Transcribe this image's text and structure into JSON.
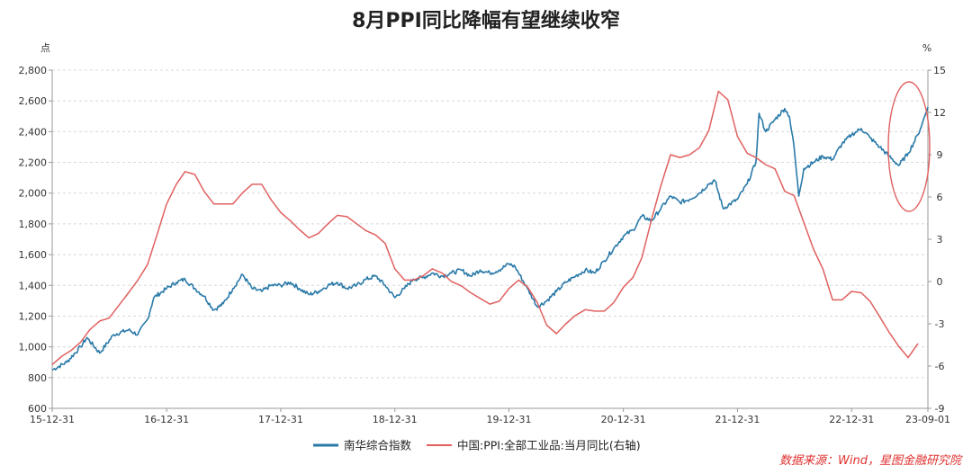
{
  "chart_data": {
    "type": "line",
    "title": "8月PPI同比降幅有望继续收窄",
    "left_unit": "点",
    "right_unit": "%",
    "x_ticks": [
      "15-12-31",
      "16-12-31",
      "17-12-31",
      "18-12-31",
      "19-12-31",
      "20-12-31",
      "21-12-31",
      "22-12-31",
      "23-09-01"
    ],
    "x_range": [
      "2015-12-31",
      "2023-09-01"
    ],
    "y_left": {
      "range": [
        600,
        2800
      ],
      "ticks": [
        "600",
        "800",
        "1,000",
        "1,200",
        "1,400",
        "1,600",
        "1,800",
        "2,000",
        "2,200",
        "2,400",
        "2,600",
        "2,800"
      ]
    },
    "y_right": {
      "range": [
        -9,
        15
      ],
      "ticks": [
        "-9",
        "-6",
        "-3",
        "0",
        "3",
        "6",
        "9",
        "12",
        "15"
      ]
    },
    "grid": "horizontal dashed",
    "legend_position": "bottom",
    "series": [
      {
        "name": "南华综合指数",
        "axis": "left",
        "color": "#2a7aa8",
        "points": [
          [
            "2015-12-31",
            850
          ],
          [
            "2016-02-15",
            900
          ],
          [
            "2016-03-31",
            1000
          ],
          [
            "2016-04-20",
            1060
          ],
          [
            "2016-05-31",
            960
          ],
          [
            "2016-07-15",
            1080
          ],
          [
            "2016-08-31",
            1110
          ],
          [
            "2016-09-30",
            1080
          ],
          [
            "2016-10-31",
            1180
          ],
          [
            "2016-11-20",
            1320
          ],
          [
            "2016-12-31",
            1380
          ],
          [
            "2017-01-31",
            1420
          ],
          [
            "2017-02-28",
            1440
          ],
          [
            "2017-03-31",
            1380
          ],
          [
            "2017-04-30",
            1330
          ],
          [
            "2017-05-31",
            1240
          ],
          [
            "2017-06-30",
            1280
          ],
          [
            "2017-07-31",
            1380
          ],
          [
            "2017-08-31",
            1470
          ],
          [
            "2017-09-30",
            1380
          ],
          [
            "2017-10-31",
            1360
          ],
          [
            "2017-11-30",
            1400
          ],
          [
            "2017-12-31",
            1400
          ],
          [
            "2018-01-31",
            1420
          ],
          [
            "2018-02-28",
            1380
          ],
          [
            "2018-03-31",
            1340
          ],
          [
            "2018-04-30",
            1360
          ],
          [
            "2018-05-31",
            1400
          ],
          [
            "2018-06-30",
            1420
          ],
          [
            "2018-07-31",
            1380
          ],
          [
            "2018-08-31",
            1400
          ],
          [
            "2018-09-30",
            1440
          ],
          [
            "2018-10-31",
            1460
          ],
          [
            "2018-11-30",
            1400
          ],
          [
            "2018-12-31",
            1320
          ],
          [
            "2019-01-31",
            1380
          ],
          [
            "2019-02-28",
            1440
          ],
          [
            "2019-03-31",
            1450
          ],
          [
            "2019-04-30",
            1480
          ],
          [
            "2019-05-31",
            1460
          ],
          [
            "2019-06-30",
            1480
          ],
          [
            "2019-07-31",
            1500
          ],
          [
            "2019-08-31",
            1460
          ],
          [
            "2019-09-30",
            1500
          ],
          [
            "2019-10-31",
            1480
          ],
          [
            "2019-11-30",
            1500
          ],
          [
            "2019-12-31",
            1540
          ],
          [
            "2020-01-20",
            1520
          ],
          [
            "2020-02-28",
            1380
          ],
          [
            "2020-03-31",
            1260
          ],
          [
            "2020-04-30",
            1300
          ],
          [
            "2020-05-31",
            1360
          ],
          [
            "2020-06-30",
            1420
          ],
          [
            "2020-07-31",
            1460
          ],
          [
            "2020-08-31",
            1500
          ],
          [
            "2020-09-30",
            1480
          ],
          [
            "2020-10-31",
            1560
          ],
          [
            "2020-11-30",
            1640
          ],
          [
            "2020-12-31",
            1720
          ],
          [
            "2021-01-31",
            1760
          ],
          [
            "2021-02-28",
            1850
          ],
          [
            "2021-03-31",
            1820
          ],
          [
            "2021-04-30",
            1900
          ],
          [
            "2021-05-31",
            1980
          ],
          [
            "2021-06-30",
            1940
          ],
          [
            "2021-07-31",
            1960
          ],
          [
            "2021-08-31",
            2000
          ],
          [
            "2021-09-30",
            2060
          ],
          [
            "2021-10-20",
            2080
          ],
          [
            "2021-11-15",
            1900
          ],
          [
            "2021-12-31",
            1960
          ],
          [
            "2022-01-31",
            2060
          ],
          [
            "2022-02-28",
            2200
          ],
          [
            "2022-03-10",
            2520
          ],
          [
            "2022-03-31",
            2400
          ],
          [
            "2022-04-30",
            2480
          ],
          [
            "2022-05-31",
            2550
          ],
          [
            "2022-06-15",
            2500
          ],
          [
            "2022-06-30",
            2300
          ],
          [
            "2022-07-15",
            1980
          ],
          [
            "2022-07-31",
            2160
          ],
          [
            "2022-08-31",
            2200
          ],
          [
            "2022-09-30",
            2240
          ],
          [
            "2022-10-31",
            2220
          ],
          [
            "2022-11-30",
            2320
          ],
          [
            "2022-12-31",
            2380
          ],
          [
            "2023-01-31",
            2420
          ],
          [
            "2023-02-28",
            2360
          ],
          [
            "2023-03-31",
            2300
          ],
          [
            "2023-04-30",
            2240
          ],
          [
            "2023-05-31",
            2180
          ],
          [
            "2023-06-30",
            2260
          ],
          [
            "2023-07-31",
            2380
          ],
          [
            "2023-08-15",
            2460
          ],
          [
            "2023-09-01",
            2560
          ]
        ]
      },
      {
        "name": "中国:PPI:全部工业品:当月同比(右轴)",
        "axis": "right",
        "color": "#e06060",
        "points": [
          [
            "2015-12-31",
            -5.9
          ],
          [
            "2016-01-31",
            -5.3
          ],
          [
            "2016-02-29",
            -4.9
          ],
          [
            "2016-03-31",
            -4.3
          ],
          [
            "2016-04-30",
            -3.4
          ],
          [
            "2016-05-31",
            -2.8
          ],
          [
            "2016-06-30",
            -2.6
          ],
          [
            "2016-07-31",
            -1.7
          ],
          [
            "2016-08-31",
            -0.8
          ],
          [
            "2016-09-30",
            0.1
          ],
          [
            "2016-10-31",
            1.2
          ],
          [
            "2016-11-30",
            3.3
          ],
          [
            "2016-12-31",
            5.5
          ],
          [
            "2017-01-31",
            6.9
          ],
          [
            "2017-02-28",
            7.8
          ],
          [
            "2017-03-31",
            7.6
          ],
          [
            "2017-04-30",
            6.4
          ],
          [
            "2017-05-31",
            5.5
          ],
          [
            "2017-06-30",
            5.5
          ],
          [
            "2017-07-31",
            5.5
          ],
          [
            "2017-08-31",
            6.3
          ],
          [
            "2017-09-30",
            6.9
          ],
          [
            "2017-10-31",
            6.9
          ],
          [
            "2017-11-30",
            5.8
          ],
          [
            "2017-12-31",
            4.9
          ],
          [
            "2018-01-31",
            4.3
          ],
          [
            "2018-02-28",
            3.7
          ],
          [
            "2018-03-31",
            3.1
          ],
          [
            "2018-04-30",
            3.4
          ],
          [
            "2018-05-31",
            4.1
          ],
          [
            "2018-06-30",
            4.7
          ],
          [
            "2018-07-31",
            4.6
          ],
          [
            "2018-08-31",
            4.1
          ],
          [
            "2018-09-30",
            3.6
          ],
          [
            "2018-10-31",
            3.3
          ],
          [
            "2018-11-30",
            2.7
          ],
          [
            "2018-12-31",
            0.9
          ],
          [
            "2019-01-31",
            0.1
          ],
          [
            "2019-02-28",
            0.1
          ],
          [
            "2019-03-31",
            0.4
          ],
          [
            "2019-04-30",
            0.9
          ],
          [
            "2019-05-31",
            0.6
          ],
          [
            "2019-06-30",
            0.0
          ],
          [
            "2019-07-31",
            -0.3
          ],
          [
            "2019-08-31",
            -0.8
          ],
          [
            "2019-09-30",
            -1.2
          ],
          [
            "2019-10-31",
            -1.6
          ],
          [
            "2019-11-30",
            -1.4
          ],
          [
            "2019-12-31",
            -0.5
          ],
          [
            "2020-01-31",
            0.1
          ],
          [
            "2020-02-29",
            -0.4
          ],
          [
            "2020-03-31",
            -1.5
          ],
          [
            "2020-04-30",
            -3.1
          ],
          [
            "2020-05-31",
            -3.7
          ],
          [
            "2020-06-30",
            -3.0
          ],
          [
            "2020-07-31",
            -2.4
          ],
          [
            "2020-08-31",
            -2.0
          ],
          [
            "2020-09-30",
            -2.1
          ],
          [
            "2020-10-31",
            -2.1
          ],
          [
            "2020-11-30",
            -1.5
          ],
          [
            "2020-12-31",
            -0.4
          ],
          [
            "2021-01-31",
            0.3
          ],
          [
            "2021-02-28",
            1.7
          ],
          [
            "2021-03-31",
            4.4
          ],
          [
            "2021-04-30",
            6.8
          ],
          [
            "2021-05-31",
            9.0
          ],
          [
            "2021-06-30",
            8.8
          ],
          [
            "2021-07-31",
            9.0
          ],
          [
            "2021-08-31",
            9.5
          ],
          [
            "2021-09-30",
            10.7
          ],
          [
            "2021-10-31",
            13.5
          ],
          [
            "2021-11-30",
            12.9
          ],
          [
            "2021-12-31",
            10.3
          ],
          [
            "2022-01-31",
            9.1
          ],
          [
            "2022-02-28",
            8.8
          ],
          [
            "2022-03-31",
            8.3
          ],
          [
            "2022-04-30",
            8.0
          ],
          [
            "2022-05-31",
            6.4
          ],
          [
            "2022-06-30",
            6.1
          ],
          [
            "2022-07-31",
            4.2
          ],
          [
            "2022-08-31",
            2.3
          ],
          [
            "2022-09-30",
            0.9
          ],
          [
            "2022-10-31",
            -1.3
          ],
          [
            "2022-11-30",
            -1.3
          ],
          [
            "2022-12-31",
            -0.7
          ],
          [
            "2023-01-31",
            -0.8
          ],
          [
            "2023-02-28",
            -1.4
          ],
          [
            "2023-03-31",
            -2.5
          ],
          [
            "2023-04-30",
            -3.6
          ],
          [
            "2023-05-31",
            -4.6
          ],
          [
            "2023-06-30",
            -5.4
          ],
          [
            "2023-07-31",
            -4.4
          ]
        ]
      }
    ],
    "annotation": "red ellipse highlighting latest rise",
    "source": "数据来源：Wind，星图金融研究院"
  }
}
